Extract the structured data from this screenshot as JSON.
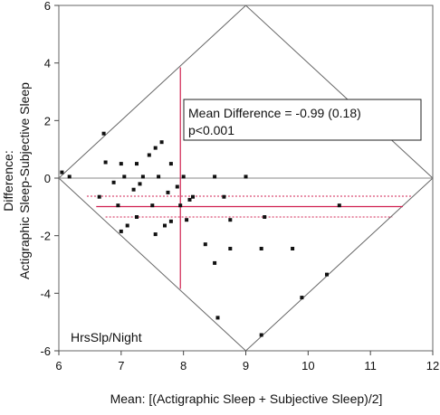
{
  "chart_data": {
    "type": "scatter",
    "title": "",
    "xlabel": "Mean: [(Actigraphic Sleep + Subjective Sleep)/2]",
    "ylabel": [
      "Difference:",
      "Actigraphic Sleep-Subjective Sleep"
    ],
    "xlim": [
      6,
      12
    ],
    "ylim": [
      -6,
      6
    ],
    "xticks": [
      6,
      7,
      8,
      9,
      10,
      11,
      12
    ],
    "yticks": [
      -6,
      -4,
      -2,
      0,
      2,
      4,
      6
    ],
    "grid": false,
    "reference_lines": {
      "zero": 0,
      "mean_difference": -0.99,
      "ci_lower": -1.35,
      "ci_upper": -0.63,
      "mean_x": 7.95,
      "mean_x_range": [
        -3.85,
        3.85
      ]
    },
    "diamond": [
      [
        6,
        0
      ],
      [
        9,
        6
      ],
      [
        12,
        0
      ],
      [
        9,
        -6
      ]
    ],
    "annotation": {
      "line1": "Mean Difference = -0.99 (0.18)",
      "line2": "p<0.001"
    },
    "corner_label": "HrsSlp/Night",
    "colors": {
      "points": "#111111",
      "mean_line": "#d02050",
      "frame": "#666666"
    },
    "points": [
      [
        6.05,
        0.2
      ],
      [
        6.17,
        0.05
      ],
      [
        6.72,
        1.55
      ],
      [
        6.75,
        0.55
      ],
      [
        6.65,
        -0.65
      ],
      [
        6.88,
        -0.15
      ],
      [
        7.0,
        0.5
      ],
      [
        7.05,
        0.05
      ],
      [
        6.95,
        -0.95
      ],
      [
        7.0,
        -1.85
      ],
      [
        7.1,
        -1.65
      ],
      [
        7.2,
        -0.4
      ],
      [
        7.25,
        0.5
      ],
      [
        7.25,
        -1.35
      ],
      [
        7.35,
        0.05
      ],
      [
        7.3,
        -0.2
      ],
      [
        7.45,
        0.8
      ],
      [
        7.5,
        -0.95
      ],
      [
        7.55,
        1.05
      ],
      [
        7.6,
        0.05
      ],
      [
        7.55,
        -1.95
      ],
      [
        7.65,
        1.25
      ],
      [
        7.7,
        -1.65
      ],
      [
        7.75,
        -0.5
      ],
      [
        7.8,
        0.5
      ],
      [
        7.8,
        -1.5
      ],
      [
        7.9,
        -0.3
      ],
      [
        7.95,
        -0.95
      ],
      [
        8.0,
        0.05
      ],
      [
        8.05,
        -1.45
      ],
      [
        8.1,
        -0.75
      ],
      [
        8.15,
        -0.65
      ],
      [
        8.35,
        -2.3
      ],
      [
        8.5,
        0.05
      ],
      [
        8.5,
        -2.95
      ],
      [
        8.55,
        -4.85
      ],
      [
        8.65,
        -0.65
      ],
      [
        8.75,
        -1.45
      ],
      [
        8.75,
        -2.45
      ],
      [
        9.0,
        0.05
      ],
      [
        9.25,
        -2.45
      ],
      [
        9.25,
        -5.45
      ],
      [
        9.3,
        -1.35
      ],
      [
        9.75,
        -2.45
      ],
      [
        9.9,
        -4.15
      ],
      [
        10.3,
        -3.35
      ],
      [
        10.5,
        -0.95
      ]
    ]
  }
}
